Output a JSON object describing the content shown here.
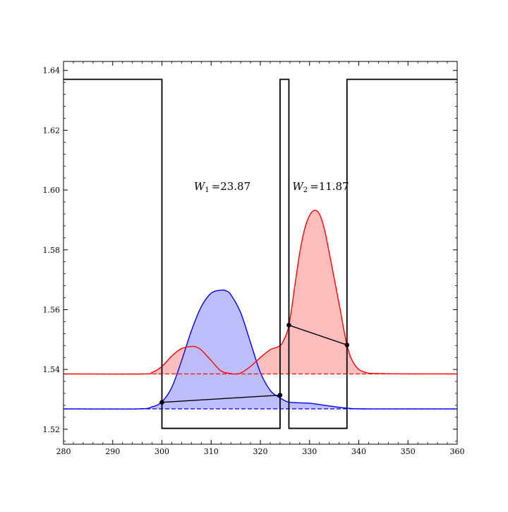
{
  "chart_data": {
    "type": "area",
    "title": "",
    "xlabel": "",
    "ylabel": "",
    "xlim": [
      280,
      360
    ],
    "ylim": [
      1.515,
      1.643
    ],
    "xticks": [
      280,
      290,
      300,
      310,
      320,
      330,
      340,
      350,
      360
    ],
    "xtick_labels": [
      "280",
      "290",
      "300",
      "310",
      "320",
      "330",
      "340",
      "350",
      "360"
    ],
    "yticks": [
      1.52,
      1.54,
      1.56,
      1.58,
      1.6,
      1.62,
      1.64
    ],
    "ytick_labels": [
      "1.52",
      "1.54",
      "1.56",
      "1.58",
      "1.60",
      "1.62",
      "1.64"
    ],
    "grid": false,
    "colors": {
      "index_profile": "#000000",
      "mode1": "#0000ff",
      "mode1_fill": "#bbbbff",
      "mode2": "#ff0000",
      "mode2_fill": "#ffbbbb"
    },
    "index_profile": {
      "x": [
        280,
        300,
        300,
        324,
        324,
        325.8,
        325.8,
        337.6,
        337.6,
        360
      ],
      "y": [
        1.637,
        1.637,
        1.5203,
        1.5203,
        1.637,
        1.637,
        1.5203,
        1.5203,
        1.637,
        1.637
      ]
    },
    "series": [
      {
        "color": "#0000ff",
        "baseline": 1.5268,
        "x": [
          280,
          295,
          298,
          300,
          302,
          304,
          306,
          308,
          310,
          312,
          313,
          314,
          316,
          318,
          320,
          322,
          323.5,
          324.5,
          326,
          330,
          334,
          338,
          342,
          360
        ],
        "y": [
          1.5268,
          1.5268,
          1.5275,
          1.5292,
          1.534,
          1.543,
          1.553,
          1.561,
          1.5655,
          1.5665,
          1.5663,
          1.565,
          1.559,
          1.549,
          1.539,
          1.533,
          1.531,
          1.53,
          1.529,
          1.5287,
          1.5278,
          1.527,
          1.5268,
          1.5268
        ],
        "chord": {
          "x": [
            300,
            324
          ],
          "y": [
            1.529,
            1.5314
          ]
        }
      },
      {
        "color": "#ff0000",
        "baseline": 1.5385,
        "x": [
          280,
          296,
          298,
          300,
          302,
          304,
          306,
          307,
          308,
          310,
          312,
          314,
          315,
          316,
          318,
          320,
          322,
          323.5,
          324.5,
          325.8,
          327,
          328,
          329,
          330,
          331,
          332,
          333,
          334,
          336,
          337.6,
          339,
          341,
          345,
          360
        ],
        "y": [
          1.5385,
          1.5385,
          1.539,
          1.541,
          1.5445,
          1.547,
          1.5477,
          1.5475,
          1.5465,
          1.543,
          1.5395,
          1.5386,
          1.5385,
          1.5388,
          1.541,
          1.544,
          1.5466,
          1.5475,
          1.549,
          1.5548,
          1.568,
          1.579,
          1.587,
          1.5915,
          1.5932,
          1.592,
          1.587,
          1.579,
          1.562,
          1.5482,
          1.542,
          1.5392,
          1.5386,
          1.5385
        ],
        "chord": {
          "x": [
            325.8,
            337.6
          ],
          "y": [
            1.5548,
            1.5482
          ]
        }
      }
    ],
    "annotations": [
      {
        "label": "W",
        "sub": "1",
        "text": "=23.87",
        "x": 306.5,
        "y": 1.6
      },
      {
        "label": "W",
        "sub": "2",
        "text": "=11.87",
        "x": 326.5,
        "y": 1.6
      }
    ]
  }
}
